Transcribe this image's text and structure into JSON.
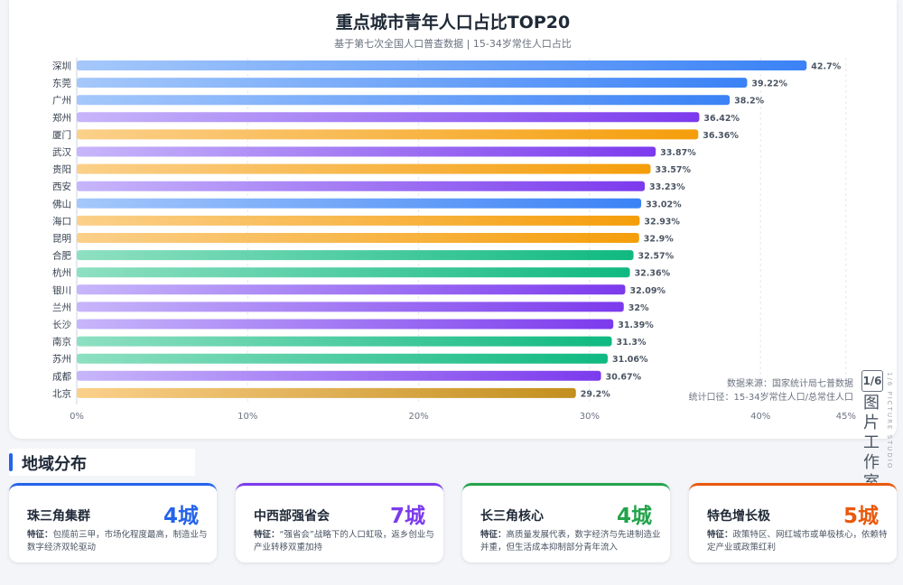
{
  "chart_data": {
    "type": "bar",
    "orientation": "horizontal",
    "title": "重点城市青年人口占比TOP20",
    "subtitle": "基于第七次全国人口普查数据 | 15-34岁常住人口占比",
    "categories": [
      "深圳",
      "东莞",
      "广州",
      "郑州",
      "厦门",
      "武汉",
      "贵阳",
      "西安",
      "佛山",
      "海口",
      "昆明",
      "合肥",
      "杭州",
      "银川",
      "兰州",
      "长沙",
      "南京",
      "苏州",
      "成都",
      "北京"
    ],
    "values": [
      42.7,
      39.22,
      38.2,
      36.42,
      36.36,
      33.87,
      33.57,
      33.23,
      33.02,
      32.93,
      32.9,
      32.57,
      32.36,
      32.09,
      32,
      31.39,
      31.3,
      31.06,
      30.67,
      29.2
    ],
    "value_labels": [
      "42.7%",
      "39.22%",
      "38.2%",
      "36.42%",
      "36.36%",
      "33.87%",
      "33.57%",
      "33.23%",
      "33.02%",
      "32.93%",
      "32.9%",
      "32.57%",
      "32.36%",
      "32.09%",
      "32%",
      "31.39%",
      "31.3%",
      "31.06%",
      "30.67%",
      "29.2%"
    ],
    "groups": [
      "pearl",
      "pearl",
      "pearl",
      "central",
      "special",
      "central",
      "special",
      "central",
      "pearl",
      "special",
      "special",
      "yangtze",
      "yangtze",
      "central",
      "central",
      "central",
      "yangtze",
      "yangtze",
      "central",
      "special"
    ],
    "xlim": [
      0,
      45
    ],
    "x_ticks": [
      0,
      10,
      20,
      30,
      40,
      45
    ],
    "x_tick_labels": [
      "0%",
      "10%",
      "20%",
      "30%",
      "40%",
      "45%"
    ],
    "grid": true,
    "colors": {
      "pearl": [
        "#a5c8fb",
        "#3b82f6"
      ],
      "central": [
        "#c7b6fa",
        "#7c3aed"
      ],
      "yangtze": [
        "#8ee0c2",
        "#10b981"
      ],
      "special": [
        "#fbd08a",
        "#f59e0b"
      ],
      "special_last": [
        "#fbd08a",
        "#c38f1e"
      ]
    }
  },
  "source_note": {
    "line1": "数据来源：国家统计局七普数据",
    "line2": "统计口径：15-34岁常住人口/总常住人口"
  },
  "watermark": {
    "logo": "1/6",
    "text": "图片工作室",
    "vertical": "1/6 PICTURE STUDIO"
  },
  "section": {
    "title": "地域分布"
  },
  "regions": [
    {
      "name": "珠三角集群",
      "count": "4城",
      "label": "特征：",
      "desc": "包揽前三甲，市场化程度最高，制造业与数字经济双轮驱动",
      "color": "#2563eb"
    },
    {
      "name": "中西部强省会",
      "count": "7城",
      "label": "特征：",
      "desc": "“强省会”战略下的人口虹吸，返乡创业与产业转移双重加持",
      "color": "#7c3aed"
    },
    {
      "name": "长三角核心",
      "count": "4城",
      "label": "特征：",
      "desc": "高质量发展代表，数字经济与先进制造业并重，但生活成本抑制部分青年流入",
      "color": "#22a34a"
    },
    {
      "name": "特色增长极",
      "count": "5城",
      "label": "特征：",
      "desc": "政策特区、网红城市或单极核心，依赖特定产业或政策红利",
      "color": "#ea580c"
    }
  ]
}
